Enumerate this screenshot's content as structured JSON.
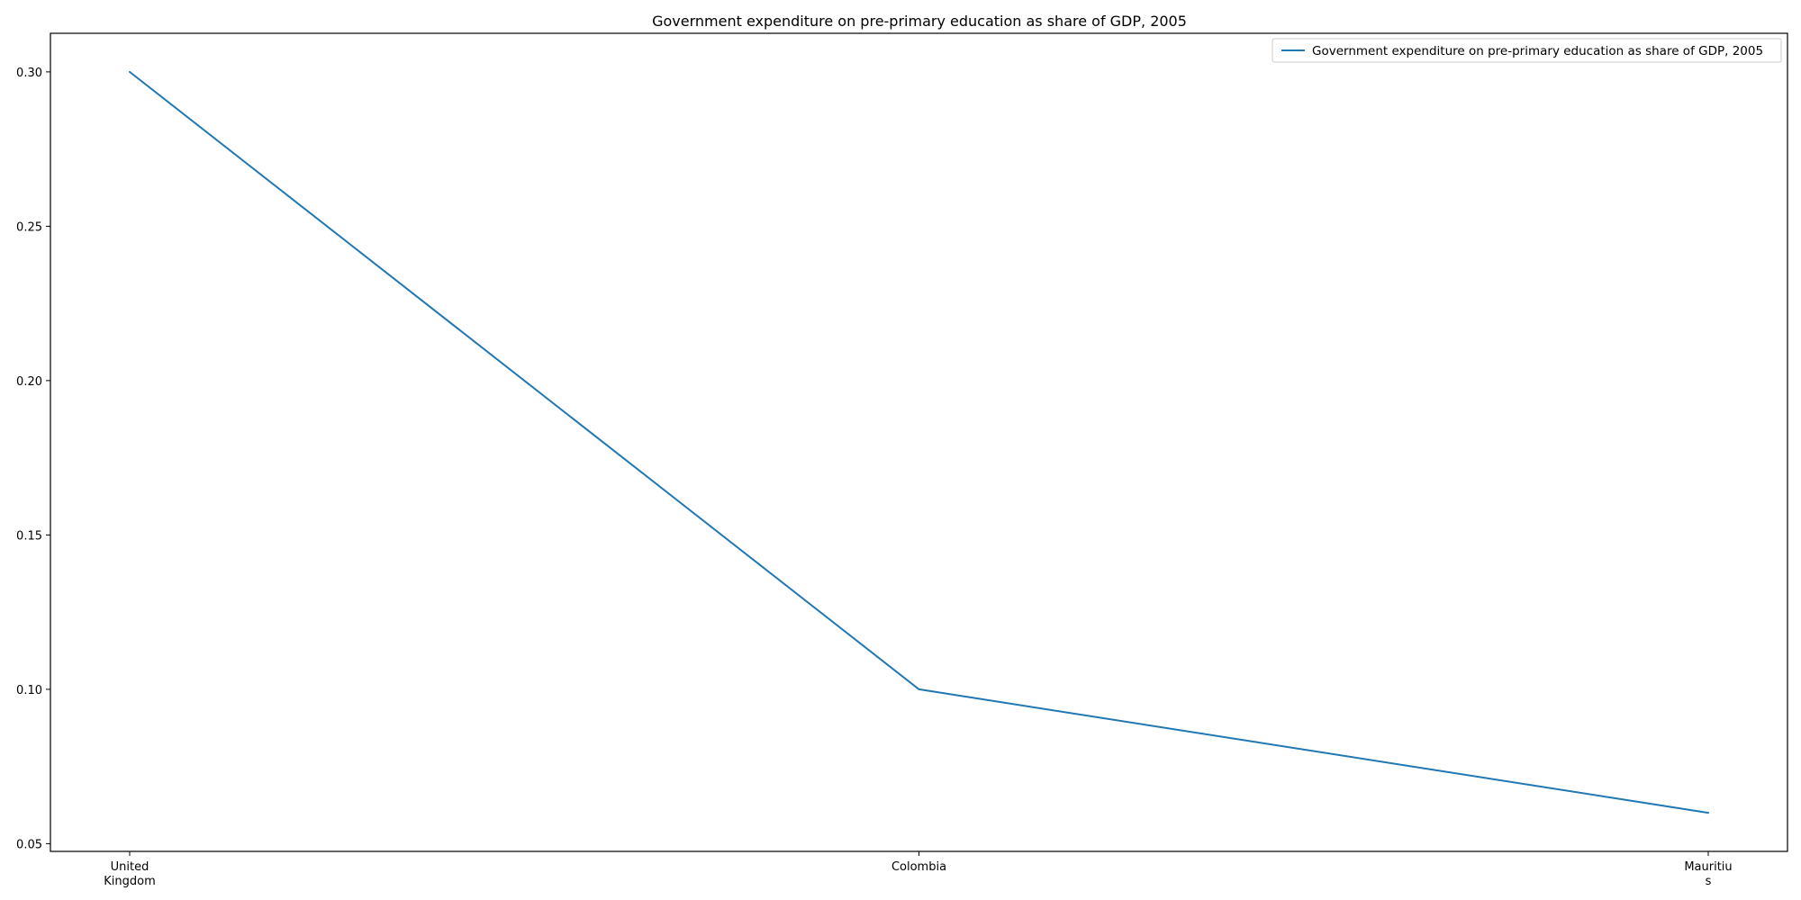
{
  "chart_data": {
    "type": "line",
    "title": "Government expenditure on pre-primary education as share of GDP, 2005",
    "xlabel": "",
    "ylabel": "",
    "categories": [
      "United Kingdom",
      "Colombia",
      "Mauritius"
    ],
    "category_tick_labels": [
      [
        "United",
        "Kingdom"
      ],
      [
        "Colombia"
      ],
      [
        "Mauritiu",
        "s"
      ]
    ],
    "series": [
      {
        "name": "Government expenditure on pre-primary education as share of GDP, 2005",
        "values": [
          0.3,
          0.1,
          0.06
        ],
        "color": "#1f77b4"
      }
    ],
    "ylim": [
      0.0475,
      0.3125
    ],
    "yticks": [
      0.05,
      0.1,
      0.15,
      0.2,
      0.25,
      0.3
    ],
    "ytick_labels": [
      "0.05",
      "0.10",
      "0.15",
      "0.20",
      "0.25",
      "0.30"
    ],
    "grid": false,
    "legend_position": "top-right"
  }
}
